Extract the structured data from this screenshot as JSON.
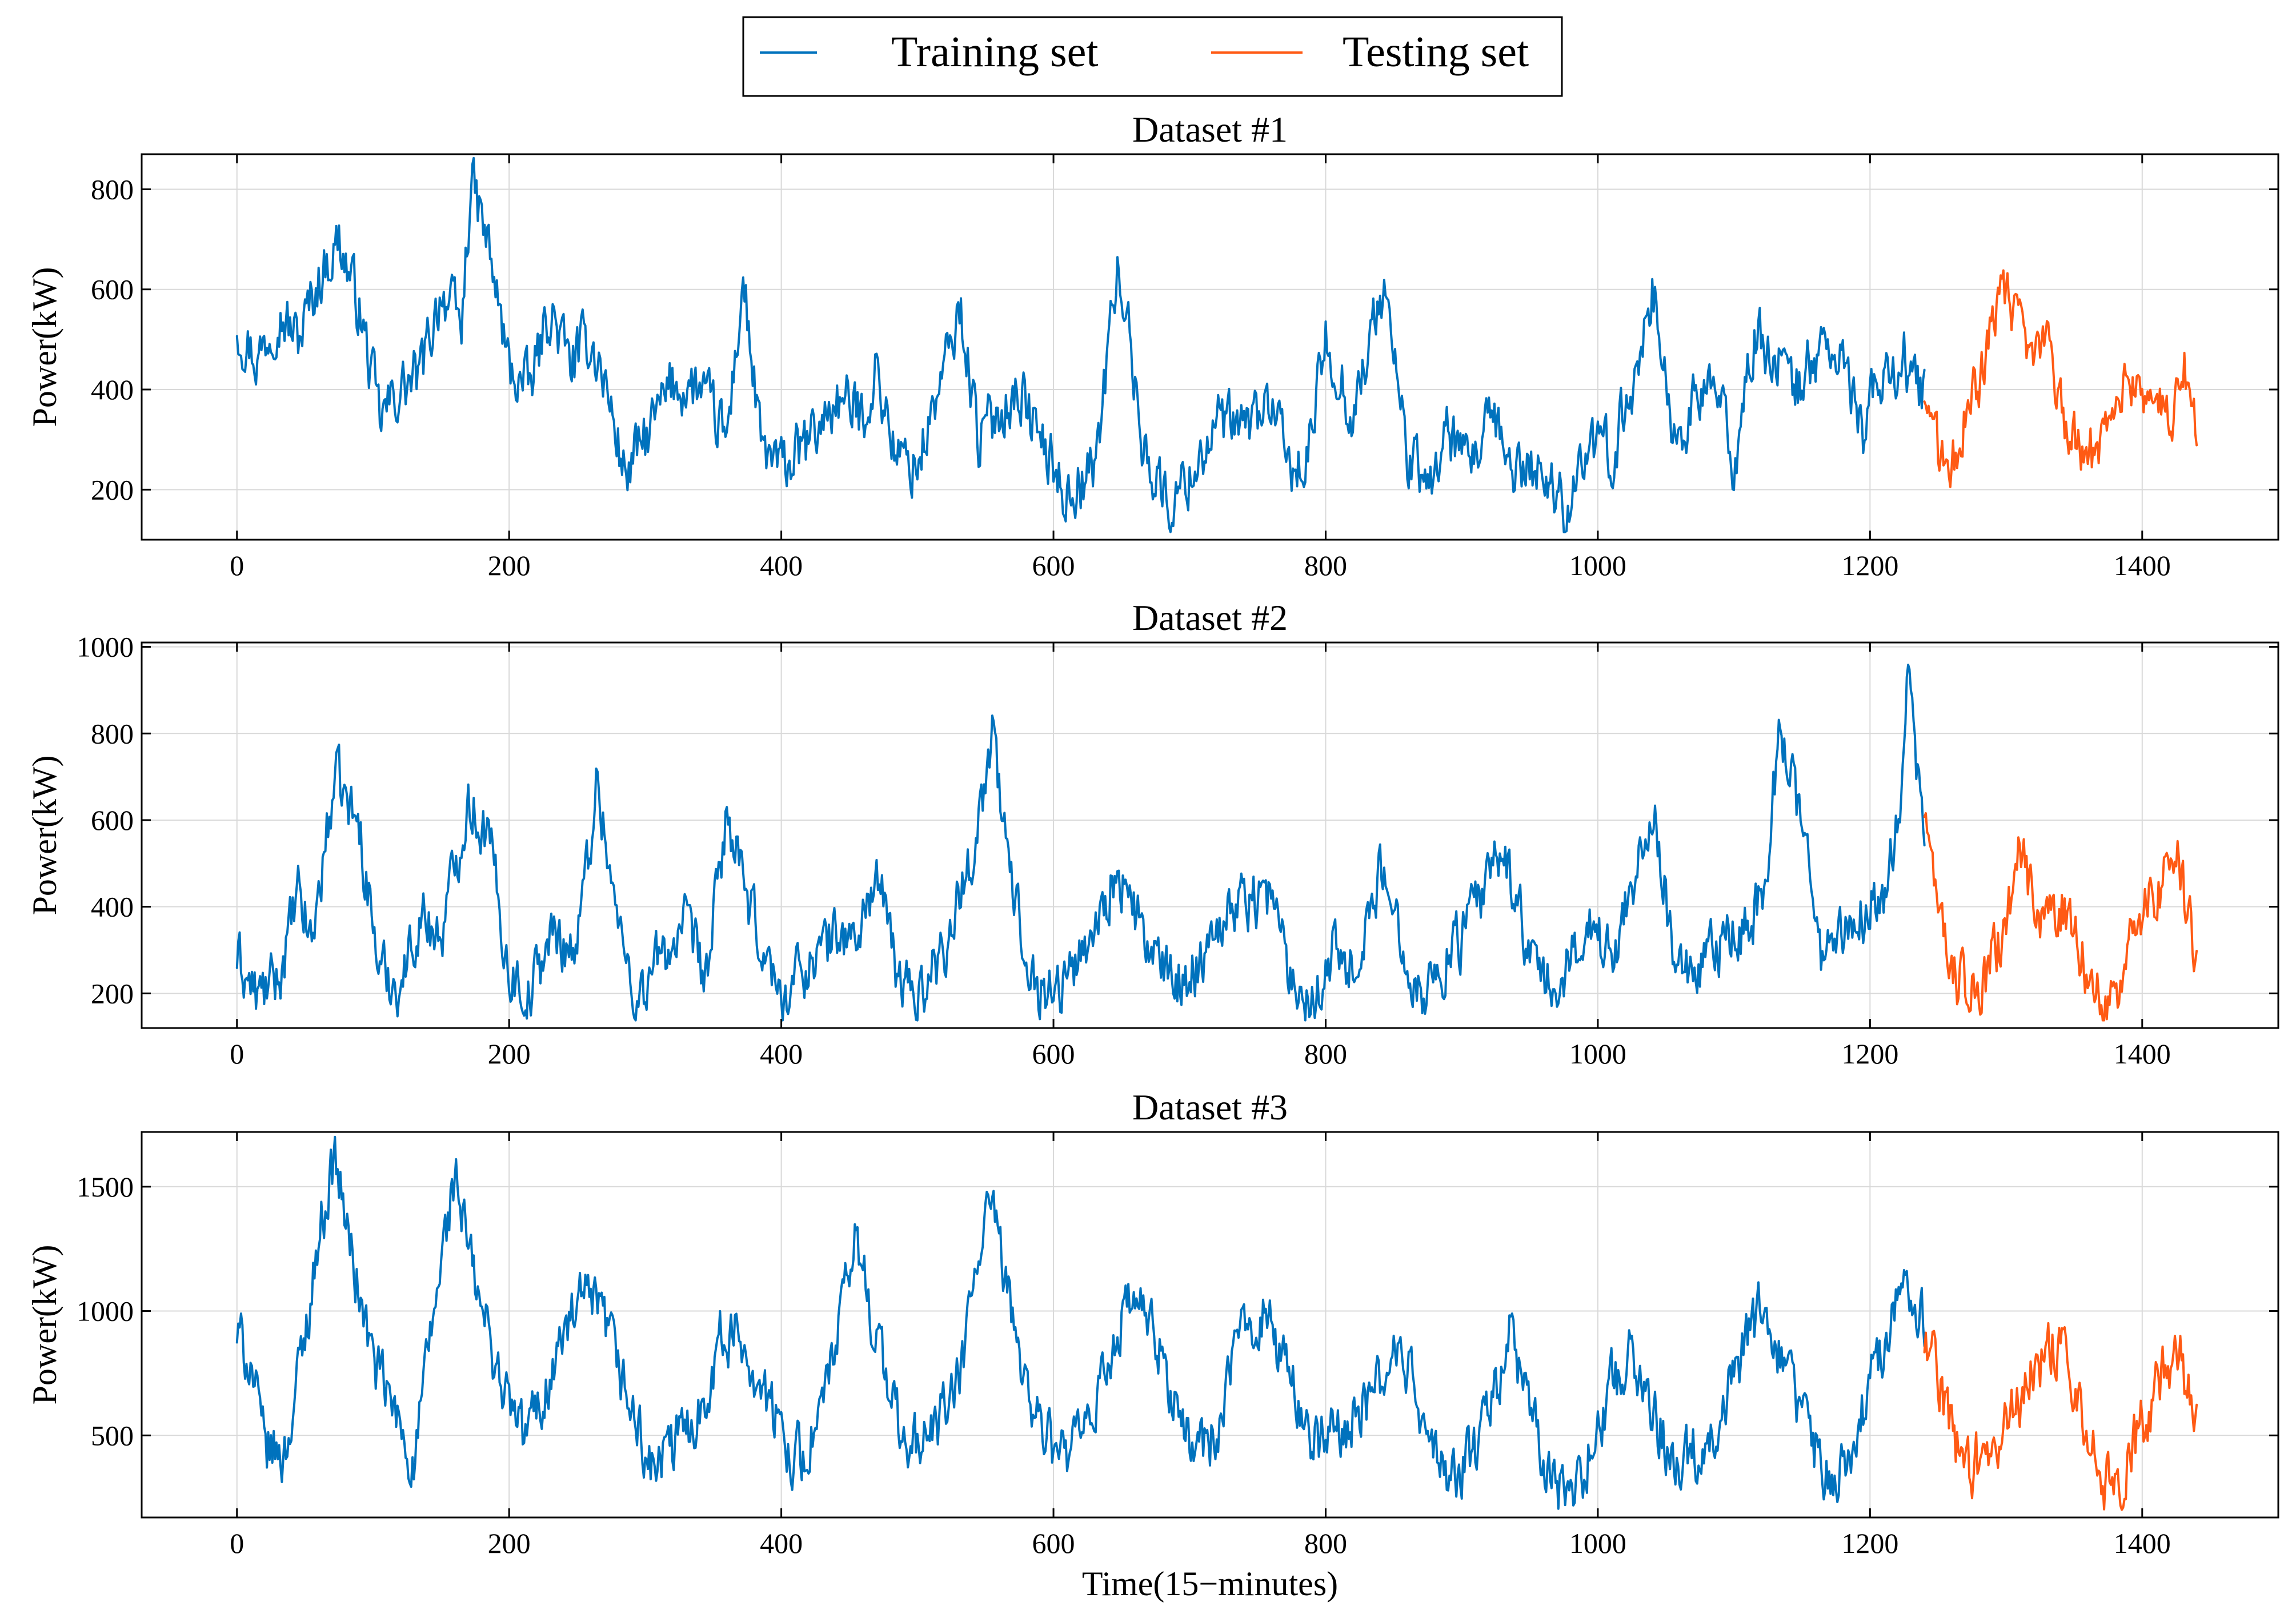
{
  "colors": {
    "training": "#0072bd",
    "testing": "#ff5a14"
  },
  "legend": {
    "training_label": "Training set",
    "testing_label": "Testing set"
  },
  "chart_data": [
    {
      "type": "line",
      "title": "Dataset #1",
      "xlabel": "",
      "ylabel": "Power(kW)",
      "xlim": [
        -70,
        1500
      ],
      "ylim": [
        100,
        870
      ],
      "xticks": [
        0,
        200,
        400,
        600,
        800,
        1000,
        1200,
        1400
      ],
      "yticks": [
        200,
        400,
        600,
        800
      ],
      "grid": true,
      "train_range": [
        0,
        1240
      ],
      "test_range": [
        1240,
        1440
      ],
      "anchors": [
        [
          0,
          530
        ],
        [
          15,
          460
        ],
        [
          30,
          560
        ],
        [
          45,
          500
        ],
        [
          60,
          620
        ],
        [
          75,
          700
        ],
        [
          90,
          560
        ],
        [
          105,
          340
        ],
        [
          120,
          400
        ],
        [
          135,
          430
        ],
        [
          150,
          600
        ],
        [
          165,
          520
        ],
        [
          172,
          820
        ],
        [
          185,
          680
        ],
        [
          200,
          440
        ],
        [
          215,
          400
        ],
        [
          230,
          560
        ],
        [
          245,
          450
        ],
        [
          260,
          500
        ],
        [
          270,
          420
        ],
        [
          285,
          230
        ],
        [
          300,
          300
        ],
        [
          320,
          410
        ],
        [
          340,
          400
        ],
        [
          360,
          300
        ],
        [
          372,
          620
        ],
        [
          385,
          280
        ],
        [
          400,
          240
        ],
        [
          420,
          290
        ],
        [
          440,
          380
        ],
        [
          460,
          350
        ],
        [
          470,
          440
        ],
        [
          485,
          260
        ],
        [
          500,
          250
        ],
        [
          520,
          440
        ],
        [
          532,
          560
        ],
        [
          545,
          300
        ],
        [
          560,
          360
        ],
        [
          575,
          400
        ],
        [
          590,
          300
        ],
        [
          610,
          190
        ],
        [
          630,
          240
        ],
        [
          648,
          660
        ],
        [
          665,
          300
        ],
        [
          685,
          160
        ],
        [
          700,
          230
        ],
        [
          720,
          330
        ],
        [
          740,
          320
        ],
        [
          760,
          380
        ],
        [
          770,
          260
        ],
        [
          785,
          230
        ],
        [
          800,
          500
        ],
        [
          820,
          350
        ],
        [
          843,
          610
        ],
        [
          860,
          270
        ],
        [
          875,
          200
        ],
        [
          890,
          320
        ],
        [
          905,
          230
        ],
        [
          920,
          330
        ],
        [
          940,
          240
        ],
        [
          960,
          240
        ],
        [
          975,
          160
        ],
        [
          990,
          280
        ],
        [
          1010,
          270
        ],
        [
          1025,
          400
        ],
        [
          1040,
          610
        ],
        [
          1055,
          300
        ],
        [
          1070,
          360
        ],
        [
          1085,
          420
        ],
        [
          1100,
          250
        ],
        [
          1115,
          500
        ],
        [
          1130,
          470
        ],
        [
          1145,
          400
        ],
        [
          1165,
          490
        ],
        [
          1180,
          450
        ],
        [
          1195,
          320
        ],
        [
          1210,
          430
        ],
        [
          1225,
          460
        ],
        [
          1240,
          380
        ],
        [
          1255,
          220
        ],
        [
          1270,
          340
        ],
        [
          1285,
          470
        ],
        [
          1300,
          600
        ],
        [
          1315,
          460
        ],
        [
          1330,
          500
        ],
        [
          1345,
          320
        ],
        [
          1360,
          250
        ],
        [
          1375,
          350
        ],
        [
          1390,
          420
        ],
        [
          1405,
          400
        ],
        [
          1420,
          320
        ],
        [
          1430,
          470
        ],
        [
          1440,
          290
        ]
      ]
    },
    {
      "type": "line",
      "title": "Dataset #2",
      "xlabel": "",
      "ylabel": "Power(kW)",
      "xlim": [
        -70,
        1500
      ],
      "ylim": [
        120,
        1010
      ],
      "xticks": [
        0,
        200,
        400,
        600,
        800,
        1000,
        1200,
        1400
      ],
      "yticks": [
        200,
        400,
        600,
        800,
        1000
      ],
      "grid": true,
      "train_range": [
        0,
        1240
      ],
      "test_range": [
        1240,
        1440
      ],
      "anchors": [
        [
          0,
          280
        ],
        [
          15,
          190
        ],
        [
          30,
          230
        ],
        [
          45,
          420
        ],
        [
          55,
          320
        ],
        [
          72,
          700
        ],
        [
          90,
          580
        ],
        [
          105,
          250
        ],
        [
          120,
          220
        ],
        [
          135,
          380
        ],
        [
          150,
          330
        ],
        [
          170,
          650
        ],
        [
          185,
          560
        ],
        [
          200,
          250
        ],
        [
          215,
          200
        ],
        [
          230,
          330
        ],
        [
          250,
          310
        ],
        [
          265,
          700
        ],
        [
          280,
          350
        ],
        [
          295,
          180
        ],
        [
          310,
          280
        ],
        [
          330,
          350
        ],
        [
          345,
          230
        ],
        [
          360,
          620
        ],
        [
          375,
          400
        ],
        [
          390,
          280
        ],
        [
          400,
          180
        ],
        [
          415,
          260
        ],
        [
          430,
          300
        ],
        [
          440,
          340
        ],
        [
          455,
          320
        ],
        [
          470,
          480
        ],
        [
          485,
          240
        ],
        [
          500,
          190
        ],
        [
          520,
          310
        ],
        [
          540,
          520
        ],
        [
          555,
          790
        ],
        [
          570,
          430
        ],
        [
          590,
          200
        ],
        [
          610,
          230
        ],
        [
          630,
          350
        ],
        [
          645,
          480
        ],
        [
          660,
          380
        ],
        [
          680,
          240
        ],
        [
          700,
          230
        ],
        [
          720,
          370
        ],
        [
          740,
          420
        ],
        [
          760,
          430
        ],
        [
          775,
          230
        ],
        [
          790,
          190
        ],
        [
          805,
          300
        ],
        [
          820,
          260
        ],
        [
          840,
          470
        ],
        [
          860,
          300
        ],
        [
          870,
          190
        ],
        [
          885,
          260
        ],
        [
          900,
          330
        ],
        [
          915,
          420
        ],
        [
          930,
          540
        ],
        [
          945,
          350
        ],
        [
          960,
          210
        ],
        [
          975,
          220
        ],
        [
          990,
          370
        ],
        [
          1010,
          280
        ],
        [
          1025,
          460
        ],
        [
          1040,
          640
        ],
        [
          1055,
          300
        ],
        [
          1070,
          210
        ],
        [
          1085,
          290
        ],
        [
          1100,
          330
        ],
        [
          1120,
          400
        ],
        [
          1135,
          820
        ],
        [
          1150,
          580
        ],
        [
          1165,
          280
        ],
        [
          1180,
          330
        ],
        [
          1195,
          380
        ],
        [
          1210,
          440
        ],
        [
          1222,
          600
        ],
        [
          1228,
          950
        ],
        [
          1235,
          680
        ],
        [
          1242,
          600
        ],
        [
          1250,
          360
        ],
        [
          1265,
          230
        ],
        [
          1280,
          200
        ],
        [
          1295,
          310
        ],
        [
          1310,
          520
        ],
        [
          1325,
          380
        ],
        [
          1340,
          400
        ],
        [
          1355,
          300
        ],
        [
          1365,
          200
        ],
        [
          1380,
          190
        ],
        [
          1395,
          370
        ],
        [
          1410,
          420
        ],
        [
          1425,
          560
        ],
        [
          1432,
          400
        ],
        [
          1440,
          280
        ]
      ]
    },
    {
      "type": "line",
      "title": "Dataset #3",
      "xlabel": "Time(15−minutes)",
      "ylabel": "Power(kW)",
      "xlim": [
        -70,
        1500
      ],
      "ylim": [
        170,
        1720
      ],
      "xticks": [
        0,
        200,
        400,
        600,
        800,
        1000,
        1200,
        1400
      ],
      "yticks": [
        500,
        1000,
        1500
      ],
      "grid": true,
      "train_range": [
        0,
        1240
      ],
      "test_range": [
        1240,
        1440
      ],
      "anchors": [
        [
          0,
          900
        ],
        [
          10,
          800
        ],
        [
          20,
          450
        ],
        [
          35,
          420
        ],
        [
          50,
          900
        ],
        [
          60,
          1300
        ],
        [
          72,
          1620
        ],
        [
          85,
          1200
        ],
        [
          100,
          800
        ],
        [
          115,
          600
        ],
        [
          130,
          380
        ],
        [
          145,
          1000
        ],
        [
          160,
          1550
        ],
        [
          175,
          1100
        ],
        [
          195,
          700
        ],
        [
          210,
          500
        ],
        [
          225,
          650
        ],
        [
          240,
          900
        ],
        [
          255,
          1050
        ],
        [
          270,
          950
        ],
        [
          290,
          600
        ],
        [
          305,
          350
        ],
        [
          320,
          450
        ],
        [
          340,
          600
        ],
        [
          355,
          880
        ],
        [
          370,
          900
        ],
        [
          385,
          700
        ],
        [
          400,
          500
        ],
        [
          415,
          400
        ],
        [
          430,
          600
        ],
        [
          445,
          1000
        ],
        [
          455,
          1300
        ],
        [
          470,
          900
        ],
        [
          490,
          450
        ],
        [
          510,
          500
        ],
        [
          530,
          700
        ],
        [
          552,
          1450
        ],
        [
          565,
          1100
        ],
        [
          585,
          600
        ],
        [
          605,
          400
        ],
        [
          625,
          500
        ],
        [
          645,
          900
        ],
        [
          660,
          1050
        ],
        [
          680,
          800
        ],
        [
          700,
          450
        ],
        [
          720,
          500
        ],
        [
          740,
          950
        ],
        [
          755,
          1000
        ],
        [
          775,
          700
        ],
        [
          795,
          450
        ],
        [
          815,
          550
        ],
        [
          835,
          650
        ],
        [
          850,
          850
        ],
        [
          865,
          700
        ],
        [
          880,
          400
        ],
        [
          895,
          320
        ],
        [
          915,
          500
        ],
        [
          935,
          900
        ],
        [
          950,
          600
        ],
        [
          965,
          300
        ],
        [
          980,
          250
        ],
        [
          995,
          450
        ],
        [
          1010,
          700
        ],
        [
          1025,
          850
        ],
        [
          1040,
          600
        ],
        [
          1055,
          400
        ],
        [
          1075,
          450
        ],
        [
          1090,
          600
        ],
        [
          1105,
          800
        ],
        [
          1120,
          1000
        ],
        [
          1135,
          800
        ],
        [
          1155,
          500
        ],
        [
          1175,
          300
        ],
        [
          1190,
          500
        ],
        [
          1205,
          800
        ],
        [
          1220,
          1050
        ],
        [
          1230,
          1100
        ],
        [
          1240,
          950
        ],
        [
          1255,
          600
        ],
        [
          1270,
          350
        ],
        [
          1290,
          450
        ],
        [
          1310,
          650
        ],
        [
          1325,
          800
        ],
        [
          1340,
          900
        ],
        [
          1355,
          650
        ],
        [
          1370,
          300
        ],
        [
          1385,
          350
        ],
        [
          1400,
          550
        ],
        [
          1415,
          750
        ],
        [
          1428,
          800
        ],
        [
          1440,
          500
        ]
      ]
    }
  ]
}
